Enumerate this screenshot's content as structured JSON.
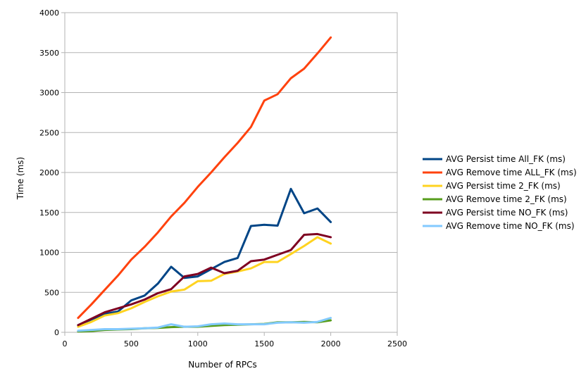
{
  "chart_data": {
    "type": "line",
    "xlabel": "Number of RPCs",
    "ylabel": "Time (ms)",
    "xlim": [
      0,
      2500
    ],
    "ylim": [
      0,
      4000
    ],
    "xticks": [
      0,
      500,
      1000,
      1500,
      2000,
      2500
    ],
    "yticks": [
      0,
      500,
      1000,
      1500,
      2000,
      2500,
      3000,
      3500,
      4000
    ],
    "grid": "horizontal",
    "legend_position": "right",
    "x": [
      100,
      200,
      300,
      400,
      500,
      600,
      700,
      800,
      900,
      1000,
      1100,
      1200,
      1300,
      1400,
      1500,
      1600,
      1700,
      1800,
      1900,
      2000
    ],
    "series": [
      {
        "name": "AVG Persist time All_FK (ms)",
        "color": "#004586",
        "values": [
          90,
          160,
          230,
          260,
          400,
          460,
          610,
          820,
          680,
          700,
          790,
          880,
          930,
          1330,
          1345,
          1335,
          1795,
          1490,
          1550,
          1380
        ]
      },
      {
        "name": "AVG Remove time ALL_FK (ms)",
        "color": "#ff420e",
        "values": [
          180,
          350,
          530,
          710,
          910,
          1070,
          1250,
          1450,
          1620,
          1820,
          2000,
          2190,
          2370,
          2570,
          2900,
          2980,
          3180,
          3300,
          3490,
          3690
        ]
      },
      {
        "name": "AVG Persist time 2_FK (ms)",
        "color": "#ffd320",
        "values": [
          70,
          130,
          210,
          240,
          300,
          380,
          450,
          510,
          535,
          640,
          645,
          730,
          760,
          800,
          880,
          880,
          980,
          1080,
          1190,
          1110
        ]
      },
      {
        "name": "AVG Remove time 2_FK (ms)",
        "color": "#579d1c",
        "values": [
          10,
          15,
          30,
          35,
          40,
          50,
          55,
          65,
          70,
          70,
          80,
          90,
          95,
          100,
          105,
          125,
          125,
          130,
          125,
          150
        ]
      },
      {
        "name": "AVG Persist time NO_FK (ms)",
        "color": "#7e0021",
        "values": [
          90,
          170,
          250,
          300,
          350,
          410,
          490,
          540,
          700,
          730,
          810,
          740,
          770,
          890,
          910,
          970,
          1030,
          1220,
          1230,
          1190
        ]
      },
      {
        "name": "AVG Remove time NO_FK (ms)",
        "color": "#83caff",
        "values": [
          20,
          30,
          40,
          40,
          45,
          50,
          60,
          100,
          70,
          75,
          100,
          110,
          100,
          100,
          100,
          120,
          125,
          120,
          130,
          180
        ]
      }
    ]
  }
}
